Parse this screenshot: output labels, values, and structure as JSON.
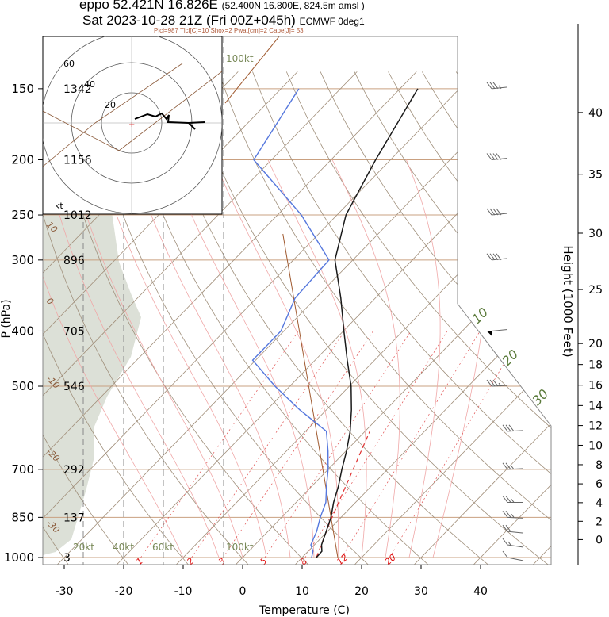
{
  "header": {
    "line1": "eppo 52.421N 16.826E",
    "line1_small": "(52.400N 16.800E, 824.5m amsl )",
    "line2": "Sat 2023-10-28 21Z (Fri 00Z+045h)",
    "line2_small": "ECMWF 0deg1",
    "indices": "Plcl=987 Tlcl[C]=10 Shox=2 Pwat[cm]=2 Cape[J]= 53"
  },
  "chart_data": {
    "type": "skew-t log-p",
    "xlabel": "Temperature (C)",
    "ylabel": "P (hPa)",
    "right_label": "Height (1000 Feet)",
    "temp_ticks": [
      -30,
      -20,
      -10,
      0,
      10,
      20,
      30,
      40
    ],
    "pressure_ticks": [
      150,
      200,
      250,
      300,
      400,
      500,
      700,
      850,
      1000
    ],
    "height_m": [
      {
        "p": 150,
        "h": "1342"
      },
      {
        "p": 200,
        "h": "1156"
      },
      {
        "p": 250,
        "h": "1012"
      },
      {
        "p": 300,
        "h": "896"
      },
      {
        "p": 400,
        "h": "705"
      },
      {
        "p": 500,
        "h": "546"
      },
      {
        "p": 700,
        "h": "292"
      },
      {
        "p": 850,
        "h": "137"
      },
      {
        "p": 1000,
        "h": "3"
      }
    ],
    "height_ft_ticks": [
      0,
      2,
      4,
      6,
      8,
      10,
      12,
      14,
      16,
      18,
      20,
      25,
      30,
      35,
      40
    ],
    "temperature_profile": [
      {
        "p": 1000,
        "t": 12.4
      },
      {
        "p": 975,
        "t": 12.3
      },
      {
        "p": 950,
        "t": 11.2
      },
      {
        "p": 900,
        "t": 9.8
      },
      {
        "p": 850,
        "t": 8.3
      },
      {
        "p": 800,
        "t": 6.3
      },
      {
        "p": 750,
        "t": 4.5
      },
      {
        "p": 700,
        "t": 2.3
      },
      {
        "p": 650,
        "t": 0.1
      },
      {
        "p": 600,
        "t": -2.5
      },
      {
        "p": 550,
        "t": -5.8
      },
      {
        "p": 500,
        "t": -9.7
      },
      {
        "p": 450,
        "t": -14.6
      },
      {
        "p": 400,
        "t": -19.9
      },
      {
        "p": 350,
        "t": -25.8
      },
      {
        "p": 300,
        "t": -33.0
      },
      {
        "p": 250,
        "t": -38.5
      },
      {
        "p": 200,
        "t": -42.5
      },
      {
        "p": 150,
        "t": -47.0
      }
    ],
    "dewpoint_profile": [
      {
        "p": 1000,
        "t": 11.6
      },
      {
        "p": 975,
        "t": 10.8
      },
      {
        "p": 950,
        "t": 9.4
      },
      {
        "p": 900,
        "t": 8.2
      },
      {
        "p": 850,
        "t": 6.5
      },
      {
        "p": 800,
        "t": 5.0
      },
      {
        "p": 750,
        "t": 2.5
      },
      {
        "p": 700,
        "t": 0.0
      },
      {
        "p": 650,
        "t": -3.0
      },
      {
        "p": 600,
        "t": -6.5
      },
      {
        "p": 550,
        "t": -14.5
      },
      {
        "p": 500,
        "t": -22.5
      },
      {
        "p": 450,
        "t": -30.5
      },
      {
        "p": 400,
        "t": -30.5
      },
      {
        "p": 350,
        "t": -33.5
      },
      {
        "p": 300,
        "t": -34.0
      },
      {
        "p": 250,
        "t": -46.0
      },
      {
        "p": 200,
        "t": -63.0
      },
      {
        "p": 150,
        "t": -67.0
      }
    ],
    "isotherm_labels": [
      -20,
      -10,
      0,
      10,
      20,
      30
    ],
    "mixing_ratio_labels": [
      1,
      2,
      3,
      5,
      8,
      12,
      20
    ],
    "theta_labels": [
      10,
      0,
      -10,
      -20,
      -30
    ],
    "hodograph": {
      "ring_labels": [
        "20",
        "40",
        "60"
      ],
      "unit": "kt",
      "wind_labels": [
        "20kt",
        "40kt",
        "60kt",
        "100kt"
      ]
    },
    "wind_barbs": [
      {
        "p": 1000,
        "dir": 250,
        "kt": 10
      },
      {
        "p": 950,
        "dir": 255,
        "kt": 15
      },
      {
        "p": 900,
        "dir": 260,
        "kt": 20
      },
      {
        "p": 850,
        "dir": 265,
        "kt": 25
      },
      {
        "p": 800,
        "dir": 270,
        "kt": 25
      },
      {
        "p": 700,
        "dir": 275,
        "kt": 25
      },
      {
        "p": 600,
        "dir": 275,
        "kt": 30
      },
      {
        "p": 500,
        "dir": 275,
        "kt": 35
      },
      {
        "p": 400,
        "dir": 280,
        "kt": 50
      },
      {
        "p": 300,
        "dir": 280,
        "kt": 40
      },
      {
        "p": 250,
        "dir": 280,
        "kt": 40
      },
      {
        "p": 200,
        "dir": 280,
        "kt": 40
      },
      {
        "p": 150,
        "dir": 280,
        "kt": 35
      }
    ]
  }
}
